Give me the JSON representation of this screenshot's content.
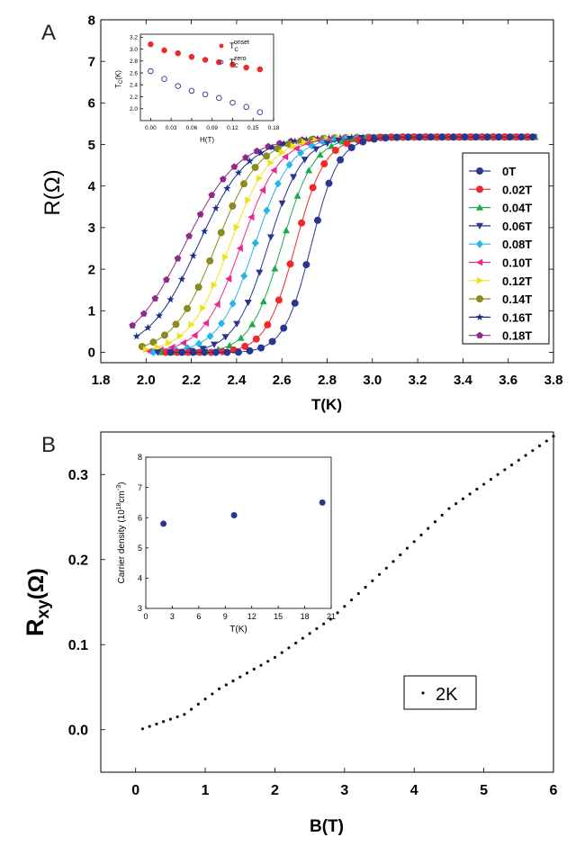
{
  "figure": {
    "panels": [
      "A",
      "B"
    ]
  },
  "chart_data": [
    {
      "id": "A-main",
      "panel_label": "A",
      "type": "line",
      "xlabel": "T(K)",
      "ylabel": "R(Ω)",
      "xlim": [
        1.8,
        3.8
      ],
      "ylim": [
        -0.25,
        8
      ],
      "x_ticks": [
        1.8,
        2.0,
        2.2,
        2.4,
        2.6,
        2.8,
        3.0,
        3.2,
        3.4,
        3.6,
        3.8
      ],
      "x_tick_labels": [
        "1.8",
        "2.0",
        "2.2",
        "2.4",
        "2.6",
        "2.8",
        "3.0",
        "3.2",
        "3.4",
        "3.6",
        "3.8"
      ],
      "y_ticks": [
        0,
        1,
        2,
        3,
        4,
        5,
        6,
        7,
        8
      ],
      "y_tick_labels": [
        "0",
        "1",
        "2",
        "3",
        "4",
        "5",
        "6",
        "7",
        "8"
      ],
      "grid": false,
      "legend_position": "right",
      "series": [
        {
          "name": "0T",
          "color": "#2a3590",
          "marker": "circle",
          "tc": 2.73,
          "w": 0.06
        },
        {
          "name": "0.02T",
          "color": "#ee2a2a",
          "marker": "circle",
          "tc": 2.66,
          "w": 0.065
        },
        {
          "name": "0.04T",
          "color": "#1faa4a",
          "marker": "triangle-up",
          "tc": 2.6,
          "w": 0.07
        },
        {
          "name": "0.06T",
          "color": "#2a3590",
          "marker": "triangle-down",
          "tc": 2.54,
          "w": 0.075
        },
        {
          "name": "0.08T",
          "color": "#27b4e6",
          "marker": "diamond",
          "tc": 2.48,
          "w": 0.08
        },
        {
          "name": "0.10T",
          "color": "#e8288e",
          "marker": "triangle-left",
          "tc": 2.42,
          "w": 0.085
        },
        {
          "name": "0.12T",
          "color": "#f0e21a",
          "marker": "triangle-right",
          "tc": 2.37,
          "w": 0.09
        },
        {
          "name": "0.14T",
          "color": "#8a8a1e",
          "marker": "circle",
          "tc": 2.31,
          "w": 0.095
        },
        {
          "name": "0.16T",
          "color": "#1a2e8c",
          "marker": "star",
          "tc": 2.23,
          "w": 0.11
        },
        {
          "name": "0.18T",
          "color": "#8e2a8a",
          "marker": "pentagon",
          "tc": 2.17,
          "w": 0.12
        }
      ],
      "normal_state_resistance": 5.2
    },
    {
      "id": "A-inset",
      "type": "scatter",
      "xlabel": "H(T)",
      "ylabel": "Tс(K)",
      "ylabel_main": "T",
      "ylabel_sub": "C",
      "ylabel_rest": "(K)",
      "xlim": [
        -0.015,
        0.18
      ],
      "ylim": [
        1.8,
        3.25
      ],
      "x_ticks": [
        0.0,
        0.03,
        0.06,
        0.09,
        0.12,
        0.15,
        0.18
      ],
      "x_tick_labels": [
        "0.00",
        "0.03",
        "0.06",
        "0.09",
        "0.12",
        "0.15",
        "0.18"
      ],
      "y_ticks": [
        2.0,
        2.2,
        2.4,
        2.6,
        2.8,
        3.0,
        3.2
      ],
      "y_tick_labels": [
        "2.0",
        "2.2",
        "2.4",
        "2.6",
        "2.8",
        "3.0",
        "3.2"
      ],
      "legend_position": "top-right",
      "series": [
        {
          "name": "T_C^onset",
          "name_main": "T",
          "name_sub": "C",
          "name_sup": "onset",
          "color": "#ee2a2a",
          "filled": true,
          "x": [
            0.0,
            0.02,
            0.04,
            0.06,
            0.08,
            0.1,
            0.12,
            0.14,
            0.16
          ],
          "y": [
            3.08,
            2.98,
            2.93,
            2.87,
            2.82,
            2.78,
            2.74,
            2.69,
            2.66
          ]
        },
        {
          "name": "T_C^zero",
          "name_main": "T",
          "name_sub": "C",
          "name_sup": "zero",
          "color": "#2a3590",
          "filled": false,
          "x": [
            0.0,
            0.02,
            0.04,
            0.06,
            0.08,
            0.1,
            0.12,
            0.14,
            0.16
          ],
          "y": [
            2.63,
            2.5,
            2.38,
            2.3,
            2.24,
            2.18,
            2.1,
            2.03,
            1.94
          ]
        }
      ]
    },
    {
      "id": "B-main",
      "panel_label": "B",
      "type": "scatter",
      "xlabel": "B(T)",
      "ylabel": "R",
      "ylabel_sub": "xy",
      "ylabel_rest": "(Ω)",
      "xlim": [
        -0.5,
        6
      ],
      "ylim": [
        -0.05,
        0.35
      ],
      "x_ticks": [
        0,
        1,
        2,
        3,
        4,
        5,
        6
      ],
      "x_tick_labels": [
        "0",
        "1",
        "2",
        "3",
        "4",
        "5",
        "6"
      ],
      "y_ticks": [
        0.0,
        0.1,
        0.2,
        0.3
      ],
      "y_tick_labels": [
        "0.0",
        "0.1",
        "0.2",
        "0.3"
      ],
      "grid": false,
      "legend_position": "bottom-right",
      "series": [
        {
          "name": "2K",
          "color": "#111111",
          "x": [
            0.1,
            0.7,
            1.2,
            2.0,
            2.8,
            3.6,
            4.5,
            5.2,
            6.0
          ],
          "y": [
            0.001,
            0.018,
            0.048,
            0.085,
            0.13,
            0.19,
            0.26,
            0.3,
            0.345
          ]
        }
      ]
    },
    {
      "id": "B-inset",
      "type": "scatter",
      "xlabel": "T(K)",
      "ylabel": "Carrier density (10¹⁸cm⁻³)",
      "ylabel_main": "Carrier density (10",
      "ylabel_sup1": "18",
      "ylabel_mid": "cm",
      "ylabel_sup2": "-3",
      "ylabel_end": ")",
      "xlim": [
        0,
        21
      ],
      "ylim": [
        3,
        8
      ],
      "x_ticks": [
        0,
        3,
        6,
        9,
        12,
        15,
        18,
        21
      ],
      "x_tick_labels": [
        "0",
        "3",
        "6",
        "9",
        "12",
        "15",
        "18",
        "21"
      ],
      "y_ticks": [
        3,
        4,
        5,
        6,
        7,
        8
      ],
      "y_tick_labels": [
        "3",
        "4",
        "5",
        "6",
        "7",
        "8"
      ],
      "series": [
        {
          "name": "",
          "color": "#2a3590",
          "x": [
            2,
            10,
            20
          ],
          "y": [
            5.8,
            6.08,
            6.5
          ]
        }
      ]
    }
  ]
}
